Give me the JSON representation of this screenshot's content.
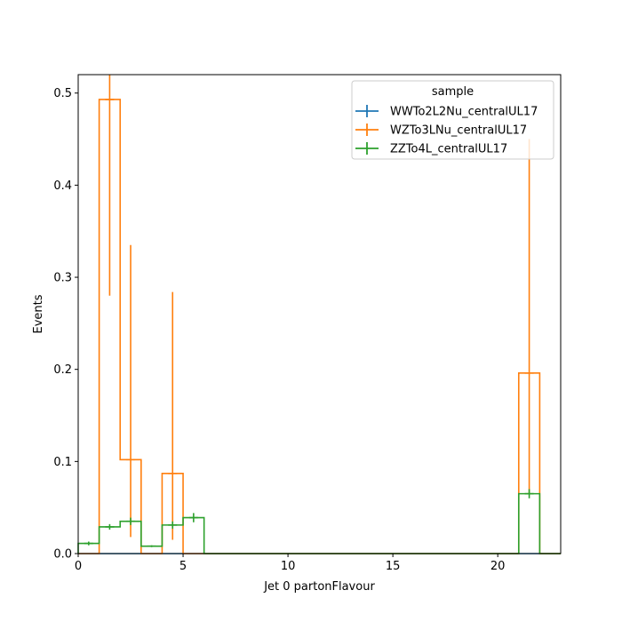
{
  "chart_data": {
    "type": "histogram-step",
    "xlabel": "Jet 0 partonFlavour",
    "ylabel": "Events",
    "xlim": [
      0,
      23
    ],
    "ylim": [
      0,
      0.52
    ],
    "xticks": [
      0,
      5,
      10,
      15,
      20
    ],
    "yticks": [
      0.0,
      0.1,
      0.2,
      0.3,
      0.4,
      0.5
    ],
    "grid": false,
    "legend": {
      "title": "sample",
      "placement": "upper-right"
    },
    "bin_edges": [
      0,
      1,
      2,
      3,
      4,
      5,
      6,
      7,
      8,
      9,
      10,
      11,
      12,
      13,
      14,
      15,
      16,
      17,
      18,
      19,
      20,
      21,
      22,
      23
    ],
    "series": [
      {
        "name": "WWTo2L2Nu_centralUL17",
        "color": "#1f77b4",
        "values": [
          0,
          0,
          0,
          0,
          0,
          0,
          0,
          0,
          0,
          0,
          0,
          0,
          0,
          0,
          0,
          0,
          0,
          0,
          0,
          0,
          0,
          0,
          0
        ],
        "err_low": [],
        "err_high": []
      },
      {
        "name": "WZTo3LNu_centralUL17",
        "color": "#ff7f0e",
        "values": [
          0,
          0.493,
          0.102,
          0,
          0.087,
          0,
          0,
          0,
          0,
          0,
          0,
          0,
          0,
          0,
          0,
          0,
          0,
          0,
          0,
          0,
          0,
          0.196,
          0
        ],
        "err_low": [
          0,
          0.28,
          0.018,
          0,
          0.015,
          0,
          0,
          0,
          0,
          0,
          0,
          0,
          0,
          0,
          0,
          0,
          0,
          0,
          0,
          0,
          0,
          0.065,
          0
        ],
        "err_high": [
          0,
          0.52,
          0.335,
          0,
          0.284,
          0,
          0,
          0,
          0,
          0,
          0,
          0,
          0,
          0,
          0,
          0,
          0,
          0,
          0,
          0,
          0,
          0.45,
          0
        ]
      },
      {
        "name": "ZZTo4L_centralUL17",
        "color": "#2ca02c",
        "values": [
          0.011,
          0.029,
          0.035,
          0.008,
          0.031,
          0.039,
          0,
          0,
          0,
          0,
          0,
          0,
          0,
          0,
          0,
          0,
          0,
          0,
          0,
          0,
          0,
          0.065,
          0
        ],
        "err_low": [
          0.009,
          0.026,
          0.031,
          0.007,
          0.027,
          0.034,
          0,
          0,
          0,
          0,
          0,
          0,
          0,
          0,
          0,
          0,
          0,
          0,
          0,
          0,
          0,
          0.06,
          0
        ],
        "err_high": [
          0.013,
          0.032,
          0.039,
          0.009,
          0.035,
          0.044,
          0,
          0,
          0,
          0,
          0,
          0,
          0,
          0,
          0,
          0,
          0,
          0,
          0,
          0,
          0,
          0.07,
          0
        ]
      }
    ]
  }
}
